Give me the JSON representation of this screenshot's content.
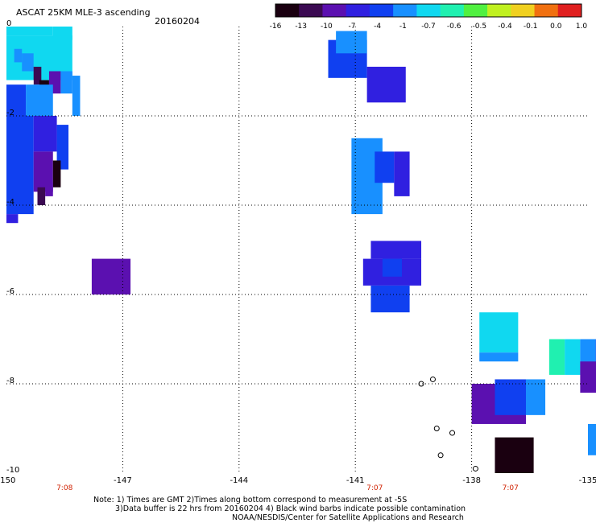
{
  "header": {
    "title": "ASCAT 25KM MLE-3 ascending",
    "date": "20160204"
  },
  "colorbar": {
    "labels": [
      "-16",
      "-13",
      "-10",
      "-7",
      "-4",
      "-1",
      "-0.7",
      "-0.6",
      "-0.5",
      "-0.4",
      "-0.1",
      "0.0",
      "1.0"
    ],
    "colors": [
      "#1a0010",
      "#3b0a52",
      "#5b10b0",
      "#3020e0",
      "#1040f0",
      "#1890ff",
      "#10d8f0",
      "#20f0b0",
      "#50f040",
      "#c0f020",
      "#f0d020",
      "#f07010",
      "#e02020"
    ]
  },
  "chart_data": {
    "type": "heatmap",
    "x_axis": {
      "ticks": [
        "-150",
        "-147",
        "-144",
        "-141",
        "-138",
        "-135"
      ]
    },
    "y_axis": {
      "ticks": [
        "0",
        "-2",
        "-4",
        "-6",
        "-8",
        "-10"
      ]
    },
    "time_labels": [
      {
        "lon": -148.5,
        "text": "7:08"
      },
      {
        "lon": -140.5,
        "text": "7:07"
      },
      {
        "lon": -137,
        "text": "7:07"
      }
    ],
    "cells": [
      {
        "lon0": -150,
        "lon1": -148.8,
        "lat0": -0.2,
        "lat1": 0.0,
        "color": "#10d8f0"
      },
      {
        "lon0": -148.8,
        "lon1": -148.3,
        "lat0": -0.3,
        "lat1": 0.0,
        "color": "#10d8f0"
      },
      {
        "lon0": -150,
        "lon1": -148.3,
        "lat0": -1.2,
        "lat1": -0.2,
        "color": "#10d8f0"
      },
      {
        "lon0": -149.8,
        "lon1": -149.6,
        "lat0": -0.8,
        "lat1": -0.5,
        "color": "#1890ff"
      },
      {
        "lon0": -149.6,
        "lon1": -149.3,
        "lat0": -1.0,
        "lat1": -0.6,
        "color": "#1890ff"
      },
      {
        "lon0": -149.3,
        "lon1": -149.1,
        "lat0": -1.3,
        "lat1": -0.9,
        "color": "#3b0a52"
      },
      {
        "lon0": -149.15,
        "lon1": -148.9,
        "lat0": -1.6,
        "lat1": -1.2,
        "color": "#1a0010"
      },
      {
        "lon0": -148.9,
        "lon1": -148.6,
        "lat0": -1.5,
        "lat1": -1.0,
        "color": "#5b10b0"
      },
      {
        "lon0": -148.6,
        "lon1": -148.3,
        "lat0": -1.5,
        "lat1": -1.0,
        "color": "#1890ff"
      },
      {
        "lon0": -148.3,
        "lon1": -148.1,
        "lat0": -2.0,
        "lat1": -1.1,
        "color": "#1890ff"
      },
      {
        "lon0": -150,
        "lon1": -149.3,
        "lat0": -1.3,
        "lat1": -1.2,
        "color": "#ffffff"
      },
      {
        "lon0": -150,
        "lon1": -149.5,
        "lat0": -2.0,
        "lat1": -1.3,
        "color": "#1040f0"
      },
      {
        "lon0": -149.5,
        "lon1": -148.8,
        "lat0": -2.0,
        "lat1": -1.3,
        "color": "#1890ff"
      },
      {
        "lon0": -150,
        "lon1": -149.3,
        "lat0": -4.2,
        "lat1": -2.0,
        "color": "#1040f0"
      },
      {
        "lon0": -149.3,
        "lon1": -148.7,
        "lat0": -2.8,
        "lat1": -2.0,
        "color": "#3020e0"
      },
      {
        "lon0": -148.7,
        "lon1": -148.4,
        "lat0": -3.2,
        "lat1": -2.2,
        "color": "#1040f0"
      },
      {
        "lon0": -149.3,
        "lon1": -148.8,
        "lat0": -3.7,
        "lat1": -2.8,
        "color": "#5b10b0"
      },
      {
        "lon0": -148.8,
        "lon1": -148.6,
        "lat0": -3.6,
        "lat1": -3.0,
        "color": "#1a0010"
      },
      {
        "lon0": -149.2,
        "lon1": -149.0,
        "lat0": -4.0,
        "lat1": -3.6,
        "color": "#3b0a52"
      },
      {
        "lon0": -149.0,
        "lon1": -148.8,
        "lat0": -3.8,
        "lat1": -3.5,
        "color": "#5b10b0"
      },
      {
        "lon0": -150,
        "lon1": -149.7,
        "lat0": -4.4,
        "lat1": -4.2,
        "color": "#3020e0"
      },
      {
        "lon0": -147.8,
        "lon1": -146.8,
        "lat0": -6.0,
        "lat1": -5.2,
        "color": "#5b10b0"
      },
      {
        "lon0": -141.7,
        "lon1": -140.7,
        "lat0": -1.15,
        "lat1": -0.3,
        "color": "#1040f0"
      },
      {
        "lon0": -141.5,
        "lon1": -140.7,
        "lat0": -0.6,
        "lat1": -0.1,
        "color": "#1890ff"
      },
      {
        "lon0": -140.7,
        "lon1": -139.7,
        "lat0": -1.7,
        "lat1": -0.9,
        "color": "#3020e0"
      },
      {
        "lon0": -141.1,
        "lon1": -140.3,
        "lat0": -4.2,
        "lat1": -2.5,
        "color": "#1890ff"
      },
      {
        "lon0": -140.5,
        "lon1": -140.0,
        "lat0": -3.5,
        "lat1": -2.8,
        "color": "#1040f0"
      },
      {
        "lon0": -140.0,
        "lon1": -139.6,
        "lat0": -3.8,
        "lat1": -2.8,
        "color": "#3020e0"
      },
      {
        "lon0": -140.0,
        "lon1": -139.7,
        "lat0": -4.4,
        "lat1": -3.9,
        "color": "#ffffff"
      },
      {
        "lon0": -140.6,
        "lon1": -139.3,
        "lat0": -5.2,
        "lat1": -4.8,
        "color": "#3020e0"
      },
      {
        "lon0": -140.8,
        "lon1": -139.3,
        "lat0": -5.8,
        "lat1": -5.2,
        "color": "#3020e0"
      },
      {
        "lon0": -140.6,
        "lon1": -139.6,
        "lat0": -6.4,
        "lat1": -5.8,
        "color": "#1040f0"
      },
      {
        "lon0": -140.3,
        "lon1": -139.8,
        "lat0": -5.6,
        "lat1": -5.2,
        "color": "#1040f0"
      },
      {
        "lon0": -137.8,
        "lon1": -136.8,
        "lat0": -7.3,
        "lat1": -6.4,
        "color": "#10d8f0"
      },
      {
        "lon0": -137.8,
        "lon1": -136.8,
        "lat0": -7.5,
        "lat1": -7.3,
        "color": "#1890ff"
      },
      {
        "lon0": -138.0,
        "lon1": -136.6,
        "lat0": -8.9,
        "lat1": -8.0,
        "color": "#5b10b0"
      },
      {
        "lon0": -137.4,
        "lon1": -136.6,
        "lat0": -8.7,
        "lat1": -7.9,
        "color": "#1040f0"
      },
      {
        "lon0": -136.6,
        "lon1": -136.1,
        "lat0": -8.7,
        "lat1": -7.9,
        "color": "#1890ff"
      },
      {
        "lon0": -137.4,
        "lon1": -136.4,
        "lat0": -10.0,
        "lat1": -9.2,
        "color": "#1a0010"
      },
      {
        "lon0": -136.0,
        "lon1": -135.6,
        "lat0": -7.8,
        "lat1": -7.0,
        "color": "#20f0b0"
      },
      {
        "lon0": -135.6,
        "lon1": -135.2,
        "lat0": -7.8,
        "lat1": -7.0,
        "color": "#10d8f0"
      },
      {
        "lon0": -135.2,
        "lon1": -134.8,
        "lat0": -7.8,
        "lat1": -7.0,
        "color": "#1890ff"
      },
      {
        "lon0": -134.8,
        "lon1": -134.5,
        "lat0": -7.6,
        "lat1": -7.0,
        "color": "#1040f0"
      },
      {
        "lon0": -135.2,
        "lon1": -134.5,
        "lat0": -8.2,
        "lat1": -7.5,
        "color": "#5b10b0"
      },
      {
        "lon0": -135.0,
        "lon1": -134.5,
        "lat0": -9.6,
        "lat1": -8.9,
        "color": "#1890ff"
      }
    ],
    "islands": [
      {
        "lon": -138.9,
        "lat": -9.0
      },
      {
        "lon": -138.5,
        "lat": -9.1
      },
      {
        "lon": -138.8,
        "lat": -9.6
      },
      {
        "lon": -137.9,
        "lat": -9.9
      },
      {
        "lon": -139.3,
        "lat": -8.0
      },
      {
        "lon": -139.0,
        "lat": -7.9
      }
    ]
  },
  "footer": {
    "note1": "Note: 1) Times are GMT 2)Times along bottom correspond to measurement at -5S",
    "note2": "3)Data buffer is 22 hrs from 20160204 4) Black wind barbs indicate possible contamination",
    "note3": "NOAA/NESDIS/Center for Satellite Applications and Research"
  }
}
